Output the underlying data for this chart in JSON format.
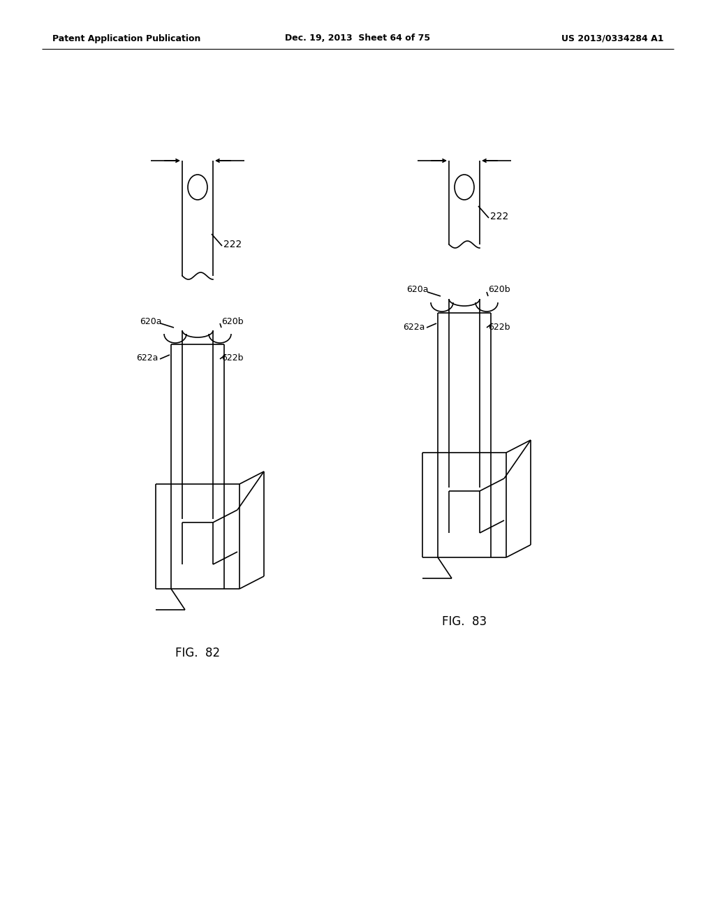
{
  "bg_color": "#ffffff",
  "line_color": "#000000",
  "header_left": "Patent Application Publication",
  "header_center": "Dec. 19, 2013  Sheet 64 of 75",
  "header_right": "US 2013/0334284 A1",
  "fig82_label": "FIG.  82",
  "fig83_label": "FIG.  83",
  "label_222": "222",
  "label_620a": "620a",
  "label_620b": "620b",
  "label_622a": "622a",
  "label_622b": "622b"
}
